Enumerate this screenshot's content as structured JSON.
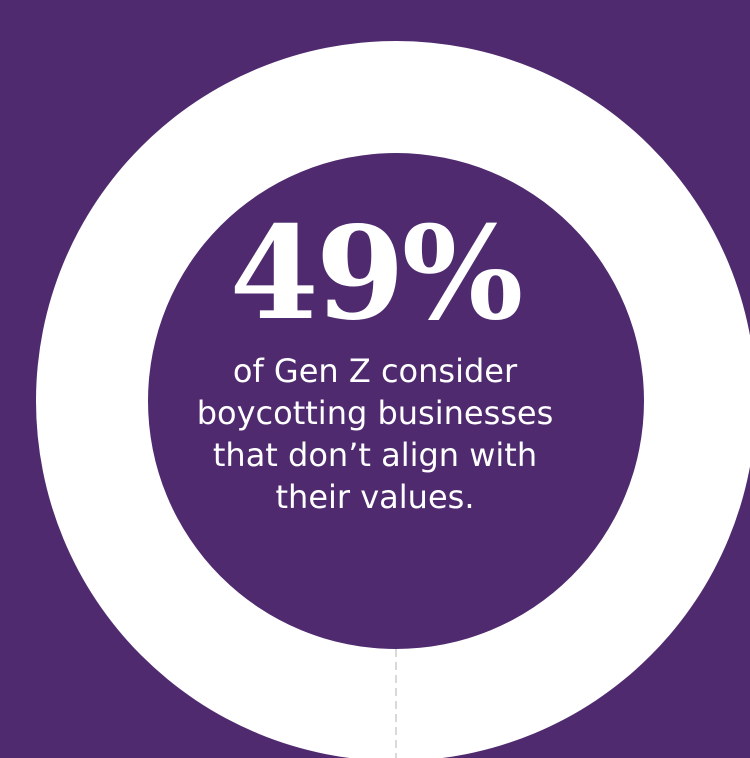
{
  "colors": {
    "background": "#4f2a6f",
    "ring": "#ffffff",
    "inner": "#4f2a6f",
    "text": "#ffffff",
    "divider": "#d9d9d9"
  },
  "chart_data": {
    "type": "pie",
    "percent": 49,
    "value_label": "49%",
    "caption": "of Gen Z consider\nboycotting businesses\nthat don’t align with\ntheir values."
  }
}
